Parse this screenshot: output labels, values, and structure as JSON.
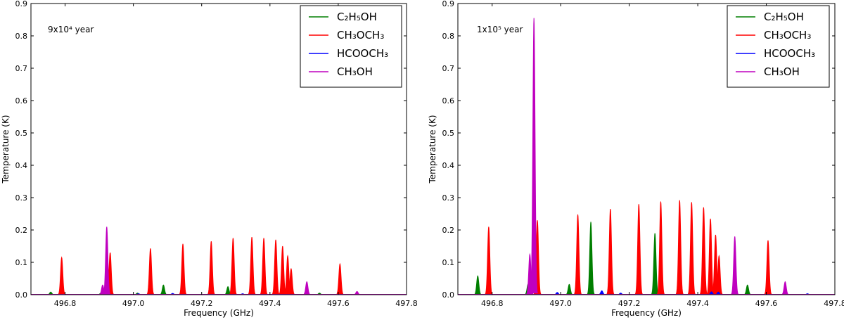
{
  "chart_data": [
    {
      "type": "line",
      "annotation": "9x10⁴ year",
      "xlabel": "Frequency (GHz)",
      "ylabel": "Temperature (K)",
      "xlim": [
        496.7,
        497.8
      ],
      "ylim": [
        0,
        0.9
      ],
      "xticks": [
        "496.8",
        "497.0",
        "497.2",
        "497.4",
        "497.6",
        "497.8"
      ],
      "yticks": [
        "0.0",
        "0.1",
        "0.2",
        "0.3",
        "0.4",
        "0.5",
        "0.6",
        "0.7",
        "0.8",
        "0.9"
      ],
      "legend_position": "top-right",
      "series": [
        {
          "name": "C₂H₅OH",
          "color": "#007f00",
          "peaks": [
            [
              496.758,
              0.008
            ],
            [
              496.905,
              0.005
            ],
            [
              497.012,
              0.005
            ],
            [
              497.088,
              0.03
            ],
            [
              497.277,
              0.025
            ],
            [
              497.545,
              0.005
            ]
          ]
        },
        {
          "name": "CH₃OCH₃",
          "color": "#ff0000",
          "peaks": [
            [
              496.79,
              0.115
            ],
            [
              496.932,
              0.13
            ],
            [
              497.05,
              0.143
            ],
            [
              497.145,
              0.157
            ],
            [
              497.228,
              0.165
            ],
            [
              497.292,
              0.175
            ],
            [
              497.347,
              0.178
            ],
            [
              497.382,
              0.175
            ],
            [
              497.417,
              0.17
            ],
            [
              497.437,
              0.15
            ],
            [
              497.452,
              0.12
            ],
            [
              497.462,
              0.08
            ],
            [
              497.605,
              0.095
            ]
          ]
        },
        {
          "name": "HCOOCH₃",
          "color": "#0000ff",
          "peaks": [
            [
              497.015,
              0.003
            ],
            [
              497.115,
              0.004
            ],
            [
              497.32,
              0.003
            ]
          ]
        },
        {
          "name": "CH₃OH",
          "color": "#bf00bf",
          "peaks": [
            [
              496.91,
              0.03
            ],
            [
              496.922,
              0.21
            ],
            [
              497.508,
              0.04
            ],
            [
              497.655,
              0.01
            ]
          ]
        }
      ]
    },
    {
      "type": "line",
      "annotation": "1x10⁵ year",
      "xlabel": "Frequency (GHz)",
      "ylabel": "Temperature (K)",
      "xlim": [
        496.7,
        497.8
      ],
      "ylim": [
        0,
        0.9
      ],
      "xticks": [
        "496.8",
        "497.0",
        "497.2",
        "497.4",
        "497.6",
        "497.8"
      ],
      "yticks": [
        "0.0",
        "0.1",
        "0.2",
        "0.3",
        "0.4",
        "0.5",
        "0.6",
        "0.7",
        "0.8",
        "0.9"
      ],
      "legend_position": "top-right",
      "series": [
        {
          "name": "C₂H₅OH",
          "color": "#007f00",
          "peaks": [
            [
              496.758,
              0.058
            ],
            [
              496.905,
              0.033
            ],
            [
              497.025,
              0.032
            ],
            [
              497.088,
              0.225
            ],
            [
              497.275,
              0.19
            ],
            [
              497.545,
              0.03
            ]
          ]
        },
        {
          "name": "CH₃OCH₃",
          "color": "#ff0000",
          "peaks": [
            [
              496.79,
              0.21
            ],
            [
              496.932,
              0.23
            ],
            [
              497.05,
              0.248
            ],
            [
              497.145,
              0.265
            ],
            [
              497.228,
              0.28
            ],
            [
              497.292,
              0.288
            ],
            [
              497.347,
              0.292
            ],
            [
              497.382,
              0.286
            ],
            [
              497.417,
              0.27
            ],
            [
              497.437,
              0.235
            ],
            [
              497.452,
              0.185
            ],
            [
              497.462,
              0.12
            ],
            [
              497.605,
              0.168
            ]
          ]
        },
        {
          "name": "HCOOCH₃",
          "color": "#0000ff",
          "peaks": [
            [
              496.99,
              0.007
            ],
            [
              497.12,
              0.012
            ],
            [
              497.175,
              0.005
            ],
            [
              497.44,
              0.009
            ],
            [
              497.46,
              0.008
            ],
            [
              497.72,
              0.003
            ]
          ]
        },
        {
          "name": "CH₃OH",
          "color": "#bf00bf",
          "peaks": [
            [
              496.91,
              0.125
            ],
            [
              496.922,
              0.855
            ],
            [
              497.508,
              0.18
            ],
            [
              497.655,
              0.04
            ]
          ]
        }
      ]
    }
  ]
}
